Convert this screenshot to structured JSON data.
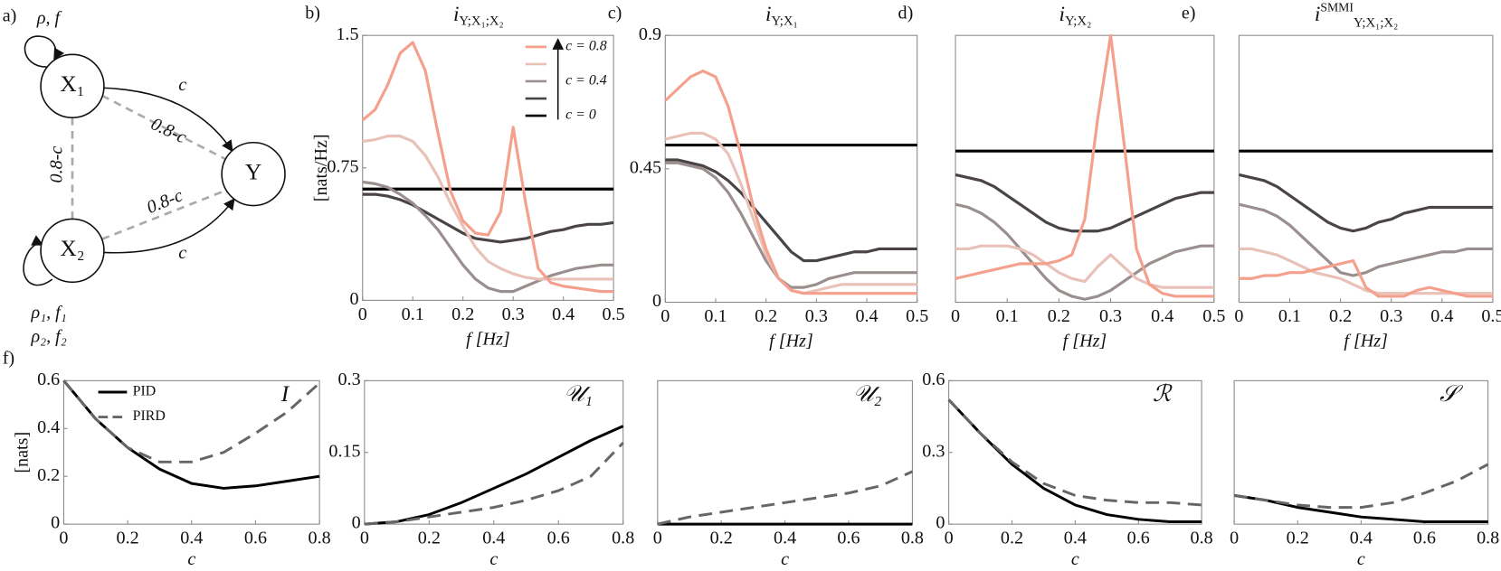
{
  "diagram": {
    "panel_label": "a)",
    "nodes": [
      {
        "label": "X₁"
      },
      {
        "label": "X₂"
      },
      {
        "label": "Y"
      }
    ],
    "edges": [
      {
        "label": "c"
      },
      {
        "label": "0.8-c"
      },
      {
        "label": "0.8-c"
      },
      {
        "label": "0.8-c"
      },
      {
        "label": "c"
      }
    ],
    "loops": [
      {
        "label": "ρ, f"
      },
      {
        "label": "ρ₁, f₁"
      },
      {
        "label": "ρ₂, f₂"
      }
    ]
  },
  "chart_data": [
    {
      "type": "line",
      "panel_label": "b)",
      "title": {
        "symbol": "i",
        "subscript": "Y;X₁;X₂"
      },
      "xlabel": "f [Hz]",
      "ylabel": "[nats/Hz]",
      "legend": "upper right",
      "x": [
        0,
        0.025,
        0.05,
        0.075,
        0.1,
        0.125,
        0.15,
        0.175,
        0.2,
        0.225,
        0.25,
        0.275,
        0.3,
        0.325,
        0.35,
        0.375,
        0.4,
        0.425,
        0.45,
        0.475,
        0.5
      ],
      "xlim": [
        0,
        0.5
      ],
      "xticks": [
        0,
        0.1,
        0.2,
        0.3,
        0.4,
        0.5
      ],
      "ylim": [
        0,
        1.5
      ],
      "yticks": [
        0,
        0.75,
        1.5
      ],
      "series": [
        {
          "name": "c = 0",
          "color": "#000000",
          "values": [
            0.63,
            0.63,
            0.63,
            0.63,
            0.63,
            0.63,
            0.63,
            0.63,
            0.63,
            0.63,
            0.63,
            0.63,
            0.63,
            0.63,
            0.63,
            0.63,
            0.63,
            0.63,
            0.63,
            0.63,
            0.63
          ]
        },
        {
          "color": "#4a4447",
          "values": [
            0.6,
            0.6,
            0.59,
            0.57,
            0.54,
            0.5,
            0.46,
            0.42,
            0.38,
            0.35,
            0.34,
            0.33,
            0.34,
            0.35,
            0.37,
            0.39,
            0.4,
            0.42,
            0.43,
            0.43,
            0.44
          ]
        },
        {
          "name": "c = 0.4",
          "color": "#9b8e8e",
          "values": [
            0.67,
            0.66,
            0.64,
            0.6,
            0.55,
            0.48,
            0.4,
            0.3,
            0.2,
            0.12,
            0.07,
            0.05,
            0.05,
            0.08,
            0.11,
            0.14,
            0.16,
            0.18,
            0.19,
            0.2,
            0.2
          ]
        },
        {
          "color": "#e8c1b8",
          "values": [
            0.9,
            0.91,
            0.93,
            0.93,
            0.9,
            0.82,
            0.7,
            0.55,
            0.42,
            0.3,
            0.22,
            0.18,
            0.15,
            0.13,
            0.12,
            0.12,
            0.12,
            0.12,
            0.12,
            0.12,
            0.12
          ]
        },
        {
          "name": "c = 0.8",
          "color": "#f5a08c",
          "values": [
            1.02,
            1.08,
            1.22,
            1.4,
            1.46,
            1.3,
            0.95,
            0.62,
            0.45,
            0.38,
            0.37,
            0.5,
            0.98,
            0.55,
            0.18,
            0.1,
            0.08,
            0.07,
            0.06,
            0.05,
            0.05
          ]
        }
      ]
    },
    {
      "type": "line",
      "panel_label": "c)",
      "title": {
        "symbol": "i",
        "subscript": "Y;X₁"
      },
      "xlabel": "f [Hz]",
      "x": [
        0,
        0.025,
        0.05,
        0.075,
        0.1,
        0.125,
        0.15,
        0.175,
        0.2,
        0.225,
        0.25,
        0.275,
        0.3,
        0.325,
        0.35,
        0.375,
        0.4,
        0.425,
        0.45,
        0.475,
        0.5
      ],
      "xlim": [
        0,
        0.5
      ],
      "xticks": [
        0,
        0.1,
        0.2,
        0.3,
        0.4,
        0.5
      ],
      "ylim": [
        0,
        0.9
      ],
      "yticks": [
        0,
        0.45,
        0.9
      ],
      "series": [
        {
          "color": "#000000",
          "values": [
            0.53,
            0.53,
            0.53,
            0.53,
            0.53,
            0.53,
            0.53,
            0.53,
            0.53,
            0.53,
            0.53,
            0.53,
            0.53,
            0.53,
            0.53,
            0.53,
            0.53,
            0.53,
            0.53,
            0.53,
            0.53
          ]
        },
        {
          "color": "#4a4447",
          "values": [
            0.48,
            0.48,
            0.47,
            0.46,
            0.44,
            0.41,
            0.37,
            0.32,
            0.27,
            0.22,
            0.17,
            0.14,
            0.14,
            0.15,
            0.16,
            0.17,
            0.17,
            0.18,
            0.18,
            0.18,
            0.18
          ]
        },
        {
          "color": "#9b8e8e",
          "values": [
            0.47,
            0.47,
            0.46,
            0.45,
            0.42,
            0.37,
            0.3,
            0.22,
            0.14,
            0.08,
            0.05,
            0.05,
            0.06,
            0.08,
            0.09,
            0.1,
            0.1,
            0.1,
            0.1,
            0.1,
            0.1
          ]
        },
        {
          "color": "#e8c1b8",
          "values": [
            0.55,
            0.56,
            0.57,
            0.57,
            0.55,
            0.5,
            0.4,
            0.28,
            0.16,
            0.08,
            0.04,
            0.03,
            0.04,
            0.05,
            0.06,
            0.06,
            0.06,
            0.06,
            0.06,
            0.06,
            0.06
          ]
        },
        {
          "color": "#f5a08c",
          "values": [
            0.68,
            0.72,
            0.76,
            0.78,
            0.76,
            0.66,
            0.5,
            0.32,
            0.18,
            0.08,
            0.04,
            0.03,
            0.03,
            0.03,
            0.03,
            0.03,
            0.03,
            0.03,
            0.03,
            0.03,
            0.03
          ]
        }
      ]
    },
    {
      "type": "line",
      "panel_label": "d)",
      "title": {
        "symbol": "i",
        "subscript": "Y;X₂"
      },
      "xlabel": "f [Hz]",
      "x": [
        0,
        0.025,
        0.05,
        0.075,
        0.1,
        0.125,
        0.15,
        0.175,
        0.2,
        0.225,
        0.25,
        0.275,
        0.3,
        0.325,
        0.35,
        0.375,
        0.4,
        0.425,
        0.45,
        0.475,
        0.5
      ],
      "xlim": [
        0,
        0.5
      ],
      "xticks": [
        0,
        0.1,
        0.2,
        0.3,
        0.4,
        0.5
      ],
      "ylim": [
        0,
        0.9
      ],
      "series": [
        {
          "color": "#000000",
          "values": [
            0.51,
            0.51,
            0.51,
            0.51,
            0.51,
            0.51,
            0.51,
            0.51,
            0.51,
            0.51,
            0.51,
            0.51,
            0.51,
            0.51,
            0.51,
            0.51,
            0.51,
            0.51,
            0.51,
            0.51,
            0.51
          ]
        },
        {
          "color": "#4a4447",
          "values": [
            0.43,
            0.42,
            0.41,
            0.39,
            0.36,
            0.33,
            0.3,
            0.27,
            0.25,
            0.24,
            0.24,
            0.24,
            0.25,
            0.27,
            0.29,
            0.31,
            0.33,
            0.35,
            0.36,
            0.37,
            0.37
          ]
        },
        {
          "color": "#9b8e8e",
          "values": [
            0.33,
            0.32,
            0.3,
            0.27,
            0.23,
            0.18,
            0.13,
            0.08,
            0.04,
            0.02,
            0.01,
            0.02,
            0.04,
            0.07,
            0.1,
            0.13,
            0.15,
            0.17,
            0.18,
            0.19,
            0.19
          ]
        },
        {
          "color": "#e8c1b8",
          "values": [
            0.18,
            0.18,
            0.19,
            0.19,
            0.19,
            0.18,
            0.16,
            0.13,
            0.1,
            0.08,
            0.07,
            0.12,
            0.16,
            0.12,
            0.08,
            0.06,
            0.05,
            0.05,
            0.05,
            0.05,
            0.05
          ]
        },
        {
          "color": "#f5a08c",
          "values": [
            0.08,
            0.09,
            0.1,
            0.11,
            0.12,
            0.13,
            0.13,
            0.13,
            0.14,
            0.16,
            0.28,
            0.62,
            0.9,
            0.55,
            0.18,
            0.06,
            0.03,
            0.02,
            0.02,
            0.02,
            0.02
          ]
        }
      ]
    },
    {
      "type": "line",
      "panel_label": "e)",
      "title": {
        "symbol": "i",
        "superscript": "SMMI",
        "subscript": "Y;X₁;X₂"
      },
      "xlabel": "f [Hz]",
      "x": [
        0,
        0.025,
        0.05,
        0.075,
        0.1,
        0.125,
        0.15,
        0.175,
        0.2,
        0.225,
        0.25,
        0.275,
        0.3,
        0.325,
        0.35,
        0.375,
        0.4,
        0.425,
        0.45,
        0.475,
        0.5
      ],
      "xlim": [
        0,
        0.5
      ],
      "xticks": [
        0,
        0.1,
        0.2,
        0.3,
        0.4,
        0.5
      ],
      "ylim": [
        0,
        0.9
      ],
      "series": [
        {
          "color": "#000000",
          "values": [
            0.51,
            0.51,
            0.51,
            0.51,
            0.51,
            0.51,
            0.51,
            0.51,
            0.51,
            0.51,
            0.51,
            0.51,
            0.51,
            0.51,
            0.51,
            0.51,
            0.51,
            0.51,
            0.51,
            0.51,
            0.51
          ]
        },
        {
          "color": "#4a4447",
          "values": [
            0.43,
            0.42,
            0.41,
            0.39,
            0.36,
            0.33,
            0.3,
            0.27,
            0.25,
            0.24,
            0.25,
            0.27,
            0.28,
            0.3,
            0.31,
            0.32,
            0.32,
            0.32,
            0.32,
            0.32,
            0.32
          ]
        },
        {
          "color": "#9b8e8e",
          "values": [
            0.33,
            0.32,
            0.31,
            0.29,
            0.26,
            0.22,
            0.18,
            0.14,
            0.1,
            0.09,
            0.1,
            0.12,
            0.13,
            0.14,
            0.15,
            0.16,
            0.17,
            0.17,
            0.18,
            0.18,
            0.18
          ]
        },
        {
          "color": "#e8c1b8",
          "values": [
            0.18,
            0.18,
            0.17,
            0.16,
            0.14,
            0.12,
            0.1,
            0.09,
            0.08,
            0.06,
            0.04,
            0.03,
            0.03,
            0.03,
            0.03,
            0.03,
            0.03,
            0.03,
            0.03,
            0.03,
            0.03
          ]
        },
        {
          "color": "#f5a08c",
          "values": [
            0.08,
            0.08,
            0.09,
            0.09,
            0.1,
            0.1,
            0.11,
            0.12,
            0.13,
            0.14,
            0.05,
            0.02,
            0.02,
            0.02,
            0.04,
            0.05,
            0.04,
            0.03,
            0.02,
            0.02,
            0.02
          ]
        }
      ]
    },
    {
      "type": "line",
      "panel_label": "f)",
      "annotation": "I",
      "xlabel": "c",
      "ylabel": "[nats]",
      "legend": "upper left",
      "x": [
        0,
        0.1,
        0.2,
        0.3,
        0.4,
        0.5,
        0.6,
        0.7,
        0.8
      ],
      "xlim": [
        0,
        0.8
      ],
      "xticks": [
        0,
        0.2,
        0.4,
        0.6,
        0.8
      ],
      "ylim": [
        0,
        0.6
      ],
      "yticks": [
        0,
        0.2,
        0.4,
        0.6
      ],
      "series": [
        {
          "name": "PID",
          "color": "#000000",
          "linestyle": "solid",
          "values": [
            0.6,
            0.44,
            0.32,
            0.23,
            0.17,
            0.15,
            0.16,
            0.18,
            0.2
          ]
        },
        {
          "name": "PIRD",
          "color": "#666666",
          "linestyle": "dashed",
          "values": [
            0.6,
            0.44,
            0.32,
            0.26,
            0.26,
            0.3,
            0.38,
            0.47,
            0.59
          ]
        }
      ]
    },
    {
      "type": "line",
      "annotation": "𝒰₁",
      "xlabel": "c",
      "x": [
        0,
        0.1,
        0.2,
        0.3,
        0.4,
        0.5,
        0.6,
        0.7,
        0.8
      ],
      "xlim": [
        0,
        0.8
      ],
      "xticks": [
        0,
        0.2,
        0.4,
        0.6,
        0.8
      ],
      "ylim": [
        0,
        0.3
      ],
      "yticks": [
        0,
        0.15,
        0.3
      ],
      "series": [
        {
          "color": "#000000",
          "linestyle": "solid",
          "values": [
            0,
            0.005,
            0.02,
            0.045,
            0.075,
            0.105,
            0.14,
            0.175,
            0.205
          ]
        },
        {
          "color": "#666666",
          "linestyle": "dashed",
          "values": [
            0,
            0.005,
            0.015,
            0.025,
            0.035,
            0.05,
            0.07,
            0.1,
            0.17
          ]
        }
      ]
    },
    {
      "type": "line",
      "annotation": "𝒰₂",
      "xlabel": "c",
      "x": [
        0,
        0.1,
        0.2,
        0.3,
        0.4,
        0.5,
        0.6,
        0.7,
        0.8
      ],
      "xlim": [
        0,
        0.8
      ],
      "xticks": [
        0,
        0.2,
        0.4,
        0.6,
        0.8
      ],
      "ylim": [
        0,
        0.3
      ],
      "series": [
        {
          "color": "#000000",
          "linestyle": "solid",
          "values": [
            0,
            0,
            0,
            0,
            0,
            0,
            0,
            0,
            0
          ]
        },
        {
          "color": "#666666",
          "linestyle": "dashed",
          "values": [
            0,
            0.015,
            0.025,
            0.035,
            0.045,
            0.055,
            0.065,
            0.08,
            0.11
          ]
        }
      ]
    },
    {
      "type": "line",
      "annotation": "ℛ",
      "xlabel": "c",
      "x": [
        0,
        0.1,
        0.2,
        0.3,
        0.4,
        0.5,
        0.6,
        0.7,
        0.8
      ],
      "xlim": [
        0,
        0.8
      ],
      "xticks": [
        0,
        0.2,
        0.4,
        0.6,
        0.8
      ],
      "ylim": [
        0,
        0.6
      ],
      "yticks": [
        0,
        0.3,
        0.6
      ],
      "series": [
        {
          "color": "#000000",
          "linestyle": "solid",
          "values": [
            0.52,
            0.38,
            0.25,
            0.15,
            0.08,
            0.04,
            0.02,
            0.01,
            0.01
          ]
        },
        {
          "color": "#666666",
          "linestyle": "dashed",
          "values": [
            0.52,
            0.38,
            0.26,
            0.17,
            0.12,
            0.1,
            0.09,
            0.09,
            0.08
          ]
        }
      ]
    },
    {
      "type": "line",
      "annotation": "𝒮",
      "xlabel": "c",
      "x": [
        0,
        0.1,
        0.2,
        0.3,
        0.4,
        0.5,
        0.6,
        0.7,
        0.8
      ],
      "xlim": [
        0,
        0.8
      ],
      "xticks": [
        0,
        0.2,
        0.4,
        0.6,
        0.8
      ],
      "ylim": [
        0,
        0.6
      ],
      "series": [
        {
          "color": "#000000",
          "linestyle": "solid",
          "values": [
            0.12,
            0.1,
            0.07,
            0.05,
            0.03,
            0.02,
            0.01,
            0.01,
            0.01
          ]
        },
        {
          "color": "#666666",
          "linestyle": "dashed",
          "values": [
            0.12,
            0.1,
            0.08,
            0.07,
            0.07,
            0.09,
            0.13,
            0.18,
            0.25
          ]
        }
      ]
    }
  ]
}
